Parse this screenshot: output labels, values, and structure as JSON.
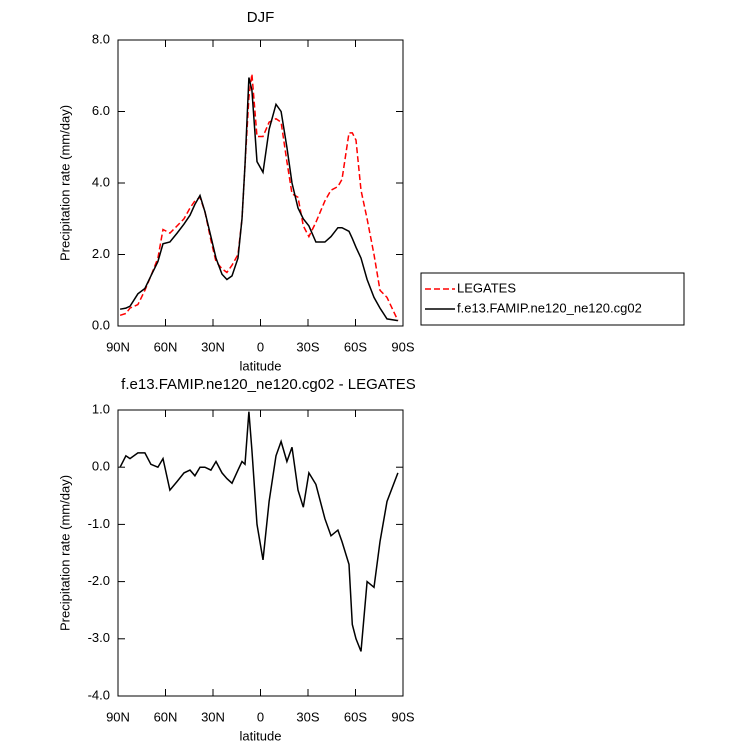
{
  "chart_data": [
    {
      "type": "line",
      "title": "DJF",
      "xlabel": "latitude",
      "ylabel": "Precipitation rate (mm/day)",
      "xlim": [
        90,
        -90
      ],
      "xticks": [
        {
          "value": 90,
          "label": "90N"
        },
        {
          "value": 60,
          "label": "60N"
        },
        {
          "value": 30,
          "label": "30N"
        },
        0,
        {
          "value": -30,
          "label": "30S"
        },
        {
          "value": -60,
          "label": "60S"
        },
        {
          "value": -90,
          "label": "90S"
        }
      ],
      "ylim": [
        0,
        8
      ],
      "yticks": [
        {
          "value": 0,
          "label": "0.0"
        },
        {
          "value": 2,
          "label": "2.0"
        },
        {
          "value": 4,
          "label": "4.0"
        },
        {
          "value": 6,
          "label": "6.0"
        },
        {
          "value": 8,
          "label": "8.0"
        }
      ],
      "legend": "outside-right",
      "x": [
        88.7,
        85,
        82.4,
        77.4,
        73,
        69.2,
        64.8,
        61.6,
        57.2,
        52.7,
        48.3,
        44.5,
        41.4,
        38.2,
        35.1,
        31.3,
        28.1,
        24.3,
        21.2,
        18,
        14.2,
        11.7,
        9.8,
        7.3,
        5.4,
        2.2,
        -1.6,
        -5.4,
        -9.8,
        -13,
        -16.7,
        -19.9,
        -23.7,
        -27,
        -30.6,
        -35,
        -40.7,
        -44.5,
        -48.9,
        -51.5,
        -55.9,
        -58,
        -60.3,
        -63.5,
        -67.3,
        -71.7,
        -75.5,
        -79.9,
        -86.8
      ],
      "series": [
        {
          "name": "LEGATES",
          "color": "#ff0000",
          "dash": "dashed",
          "values": [
            0.3,
            0.35,
            0.5,
            0.6,
            1.0,
            1.4,
            1.9,
            2.7,
            2.6,
            2.8,
            3.0,
            3.3,
            3.5,
            3.6,
            3.2,
            2.4,
            1.8,
            1.6,
            1.5,
            1.7,
            2.0,
            3.0,
            4.5,
            6.4,
            7.05,
            5.3,
            5.3,
            5.7,
            5.8,
            5.7,
            4.6,
            3.7,
            3.6,
            2.8,
            2.5,
            2.9,
            3.5,
            3.8,
            3.9,
            4.1,
            5.4,
            5.4,
            5.2,
            3.8,
            3.0,
            2.0,
            1.0,
            0.8,
            0.15
          ]
        },
        {
          "name": "f.e13.FAMIP.ne120_ne120.cg02",
          "color": "#000000",
          "dash": "solid",
          "values": [
            0.47,
            0.5,
            0.55,
            0.9,
            1.05,
            1.4,
            1.8,
            2.3,
            2.35,
            2.6,
            2.85,
            3.1,
            3.4,
            3.65,
            3.2,
            2.5,
            1.9,
            1.45,
            1.3,
            1.4,
            1.9,
            3.0,
            4.5,
            6.95,
            6.6,
            4.6,
            4.3,
            5.5,
            6.2,
            6.0,
            5.0,
            4.0,
            3.3,
            3.0,
            2.8,
            2.35,
            2.35,
            2.5,
            2.75,
            2.75,
            2.65,
            2.45,
            2.2,
            1.9,
            1.3,
            0.8,
            0.5,
            0.2,
            0.15
          ]
        }
      ]
    },
    {
      "type": "line",
      "title": "f.e13.FAMIP.ne120_ne120.cg02 - LEGATES",
      "xlabel": "latitude",
      "ylabel": "Precipitation rate (mm/day)",
      "xlim": [
        90,
        -90
      ],
      "xticks": [
        {
          "value": 90,
          "label": "90N"
        },
        {
          "value": 60,
          "label": "60N"
        },
        {
          "value": 30,
          "label": "30N"
        },
        0,
        {
          "value": -30,
          "label": "30S"
        },
        {
          "value": -60,
          "label": "60S"
        },
        {
          "value": -90,
          "label": "90S"
        }
      ],
      "ylim": [
        -4,
        1
      ],
      "yticks": [
        {
          "value": -4,
          "label": "-4.0"
        },
        {
          "value": -3,
          "label": "-3.0"
        },
        {
          "value": -2,
          "label": "-2.0"
        },
        {
          "value": -1,
          "label": "-1.0"
        },
        {
          "value": 0,
          "label": "0.0"
        },
        {
          "value": 1,
          "label": "1.0"
        }
      ],
      "x": [
        88.7,
        85,
        82.4,
        77.4,
        73,
        69.2,
        64.8,
        61.6,
        57.2,
        52.7,
        48.3,
        44.5,
        41.4,
        38.2,
        35.1,
        31.3,
        28.1,
        24.3,
        21.2,
        18,
        14.2,
        11.7,
        9.8,
        7.3,
        5.4,
        2.2,
        -1.6,
        -5.4,
        -9.8,
        -13,
        -16.7,
        -19.9,
        -23.7,
        -27,
        -30.6,
        -35,
        -40.7,
        -44.5,
        -48.9,
        -51.5,
        -55.9,
        -58,
        -60.3,
        -63.5,
        -67.3,
        -71.7,
        -75.5,
        -79.9,
        -86.8
      ],
      "series": [
        {
          "color": "#000000",
          "dash": "solid",
          "values": [
            0.0,
            0.2,
            0.15,
            0.25,
            0.25,
            0.05,
            0.0,
            0.15,
            -0.4,
            -0.25,
            -0.1,
            -0.05,
            -0.15,
            0.0,
            0.0,
            -0.05,
            0.1,
            -0.1,
            -0.2,
            -0.28,
            -0.05,
            0.1,
            0.05,
            0.97,
            0.3,
            -1.0,
            -1.62,
            -0.6,
            0.2,
            0.45,
            0.1,
            0.35,
            -0.4,
            -0.7,
            -0.1,
            -0.3,
            -0.9,
            -1.2,
            -1.1,
            -1.3,
            -1.7,
            -2.75,
            -3.0,
            -3.22,
            -2.0,
            -2.1,
            -1.3,
            -0.6,
            -0.1
          ]
        }
      ]
    }
  ]
}
